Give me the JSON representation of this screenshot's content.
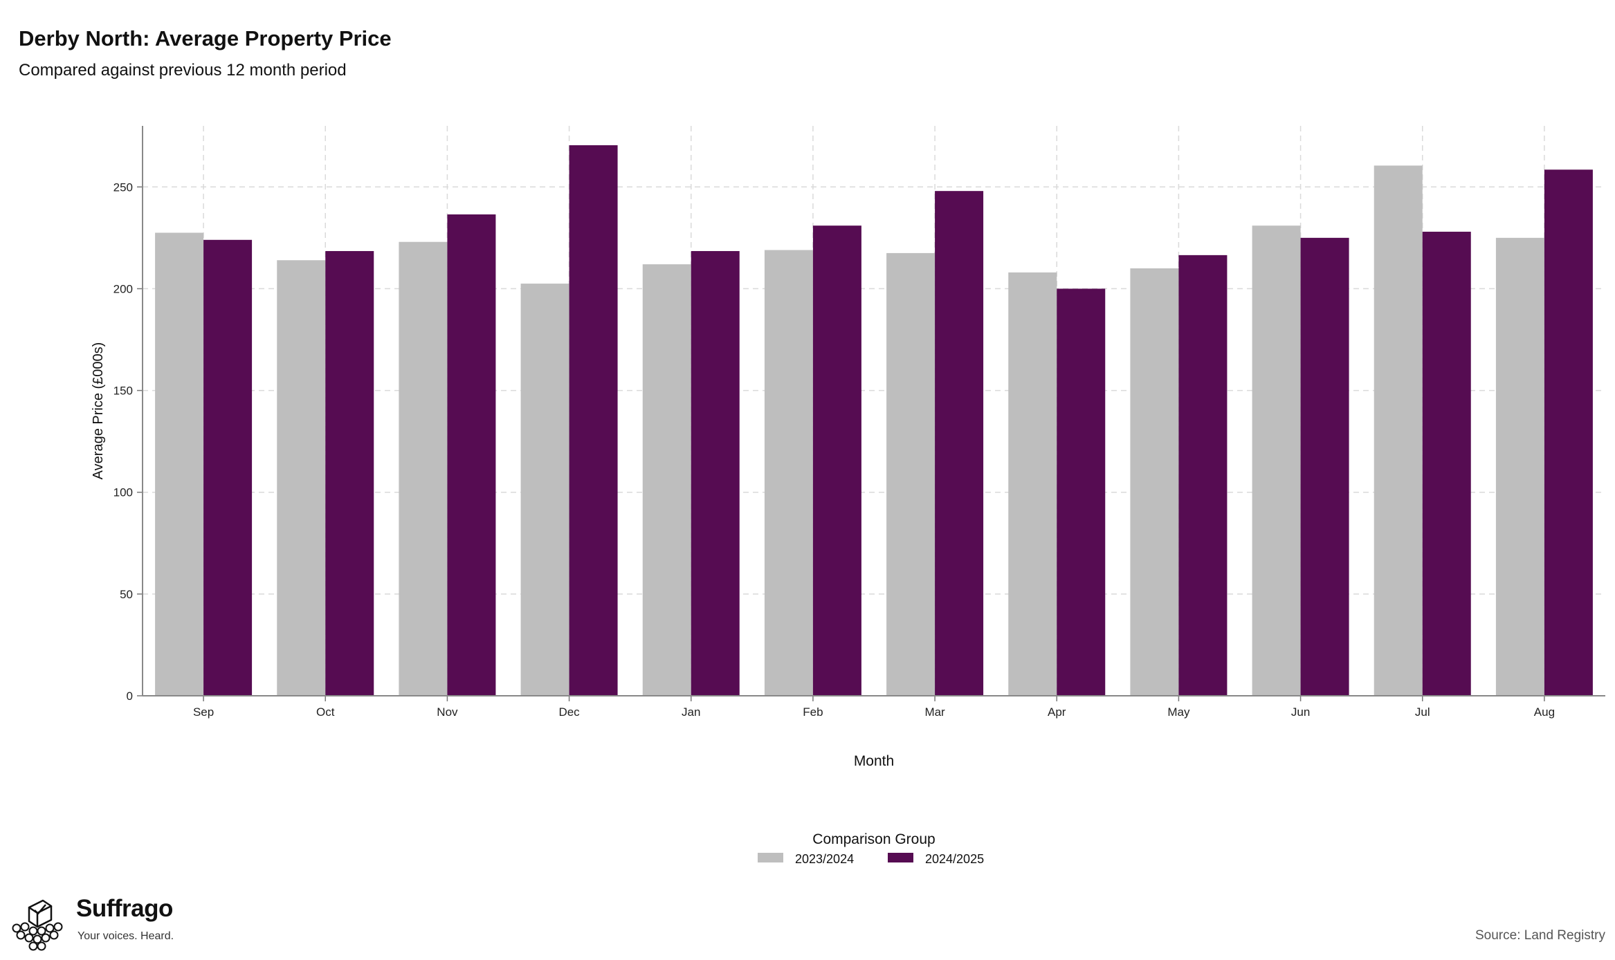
{
  "header": {
    "title": "Derby North: Average Property Price",
    "subtitle": "Compared against previous 12 month period"
  },
  "chart_data": {
    "type": "bar",
    "title": "Derby North: Average Property Price",
    "subtitle": "Compared against previous 12 month period",
    "xlabel": "Month",
    "ylabel": "Average Price (£000s)",
    "categories": [
      "Sep",
      "Oct",
      "Nov",
      "Dec",
      "Jan",
      "Feb",
      "Mar",
      "Apr",
      "May",
      "Jun",
      "Jul",
      "Aug"
    ],
    "series": [
      {
        "name": "2023/2024",
        "color": "#bebebe",
        "values": [
          227.5,
          214,
          223,
          202.5,
          212,
          219,
          217.5,
          208,
          210,
          231,
          260.5,
          225
        ]
      },
      {
        "name": "2024/2025",
        "color": "#560c52",
        "values": [
          224,
          218.5,
          236.5,
          270.5,
          218.5,
          231,
          248,
          200,
          216.5,
          225,
          228,
          258.5
        ]
      }
    ],
    "ylim": [
      0,
      280
    ],
    "yticks": [
      0,
      50,
      100,
      150,
      200,
      250
    ],
    "grid": true,
    "legend": {
      "title": "Comparison Group",
      "placement": "bottom",
      "items": [
        "2023/2024",
        "2024/2025"
      ]
    }
  },
  "footer": {
    "brand_name": "Suffrago",
    "brand_tagline": "Your voices. Heard.",
    "source": "Source: Land Registry"
  }
}
